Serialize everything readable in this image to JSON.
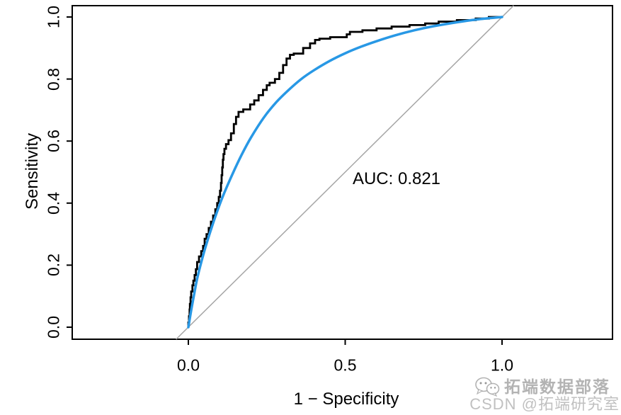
{
  "watermark": {
    "line1": "拓端数据部落",
    "line2": "CSDN @拓端研究室",
    "icon": "chat-bubbles-icon"
  },
  "chart_data": {
    "type": "line",
    "title": "",
    "xlabel": "1 − Specificity",
    "ylabel": "Sensitivity",
    "x_ticks": [
      "0.0",
      "0.5",
      "1.0"
    ],
    "x_tick_values": [
      0,
      0.5,
      1
    ],
    "y_ticks": [
      "0.0",
      "0.2",
      "0.4",
      "0.6",
      "0.8",
      "1.0"
    ],
    "y_tick_values": [
      0,
      0.2,
      0.4,
      0.6,
      0.8,
      1
    ],
    "xlim": [
      -0.37,
      1.35
    ],
    "ylim": [
      -0.04,
      1.04
    ],
    "grid": false,
    "legend": "none",
    "annotation": {
      "text": "AUC: 0.821",
      "x": 0.664,
      "y": 0.477
    },
    "auc": 0.821,
    "colors": {
      "empirical": "#000000",
      "smooth": "#2898e5",
      "reference": "#a6a6a6",
      "box": "#000000"
    },
    "series": [
      {
        "name": "empirical-roc",
        "style": "step",
        "points": [
          [
            0,
            0
          ],
          [
            0.002,
            0.015
          ],
          [
            0.004,
            0.035
          ],
          [
            0.005,
            0.057
          ],
          [
            0.007,
            0.075
          ],
          [
            0.009,
            0.096
          ],
          [
            0.013,
            0.115
          ],
          [
            0.016,
            0.135
          ],
          [
            0.02,
            0.15
          ],
          [
            0.024,
            0.168
          ],
          [
            0.028,
            0.187
          ],
          [
            0.034,
            0.21
          ],
          [
            0.041,
            0.228
          ],
          [
            0.047,
            0.245
          ],
          [
            0.052,
            0.262
          ],
          [
            0.058,
            0.285
          ],
          [
            0.065,
            0.3
          ],
          [
            0.072,
            0.32
          ],
          [
            0.079,
            0.34
          ],
          [
            0.086,
            0.36
          ],
          [
            0.092,
            0.38
          ],
          [
            0.097,
            0.4
          ],
          [
            0.101,
            0.42
          ],
          [
            0.104,
            0.44
          ],
          [
            0.106,
            0.465
          ],
          [
            0.108,
            0.49
          ],
          [
            0.11,
            0.515
          ],
          [
            0.112,
            0.54
          ],
          [
            0.115,
            0.558
          ],
          [
            0.12,
            0.575
          ],
          [
            0.128,
            0.59
          ],
          [
            0.136,
            0.603
          ],
          [
            0.145,
            0.625
          ],
          [
            0.152,
            0.655
          ],
          [
            0.16,
            0.678
          ],
          [
            0.175,
            0.694
          ],
          [
            0.197,
            0.702
          ],
          [
            0.21,
            0.718
          ],
          [
            0.224,
            0.731
          ],
          [
            0.238,
            0.748
          ],
          [
            0.25,
            0.765
          ],
          [
            0.259,
            0.78
          ],
          [
            0.276,
            0.788
          ],
          [
            0.29,
            0.8
          ],
          [
            0.302,
            0.82
          ],
          [
            0.313,
            0.845
          ],
          [
            0.324,
            0.866
          ],
          [
            0.336,
            0.878
          ],
          [
            0.366,
            0.882
          ],
          [
            0.388,
            0.9
          ],
          [
            0.404,
            0.915
          ],
          [
            0.418,
            0.926
          ],
          [
            0.452,
            0.93
          ],
          [
            0.505,
            0.935
          ],
          [
            0.515,
            0.944
          ],
          [
            0.555,
            0.952
          ],
          [
            0.6,
            0.957
          ],
          [
            0.648,
            0.963
          ],
          [
            0.705,
            0.969
          ],
          [
            0.755,
            0.974
          ],
          [
            0.798,
            0.979
          ],
          [
            0.856,
            0.985
          ],
          [
            0.916,
            0.99
          ],
          [
            0.958,
            0.995
          ],
          [
            1,
            1
          ]
        ]
      },
      {
        "name": "smooth-roc",
        "style": "smooth",
        "points": [
          [
            0,
            0
          ],
          [
            0.01,
            0.06
          ],
          [
            0.02,
            0.115
          ],
          [
            0.03,
            0.165
          ],
          [
            0.05,
            0.242
          ],
          [
            0.07,
            0.308
          ],
          [
            0.09,
            0.368
          ],
          [
            0.11,
            0.422
          ],
          [
            0.14,
            0.492
          ],
          [
            0.17,
            0.556
          ],
          [
            0.2,
            0.612
          ],
          [
            0.24,
            0.675
          ],
          [
            0.28,
            0.725
          ],
          [
            0.32,
            0.765
          ],
          [
            0.36,
            0.8
          ],
          [
            0.4,
            0.828
          ],
          [
            0.45,
            0.858
          ],
          [
            0.5,
            0.883
          ],
          [
            0.55,
            0.904
          ],
          [
            0.6,
            0.922
          ],
          [
            0.66,
            0.941
          ],
          [
            0.72,
            0.957
          ],
          [
            0.78,
            0.97
          ],
          [
            0.85,
            0.982
          ],
          [
            0.92,
            0.992
          ],
          [
            1,
            1
          ]
        ]
      },
      {
        "name": "chance-line",
        "style": "straight",
        "points": [
          [
            -0.0388,
            -0.0388
          ],
          [
            1.037,
            1.037
          ]
        ]
      }
    ]
  }
}
